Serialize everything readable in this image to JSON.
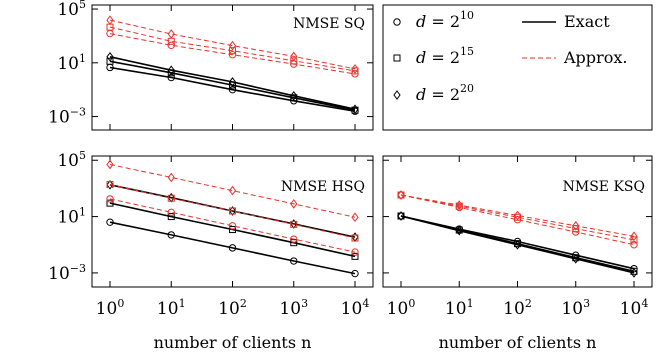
{
  "chart_data": [
    {
      "type": "line",
      "title": "NMSE SQ",
      "xscale": "log",
      "yscale": "log",
      "x": [
        1,
        10,
        100,
        1000,
        10000
      ],
      "x_ticks": [
        {
          "base": "10",
          "exp": "0"
        },
        {
          "base": "10",
          "exp": "1"
        },
        {
          "base": "10",
          "exp": "2"
        },
        {
          "base": "10",
          "exp": "3"
        },
        {
          "base": "10",
          "exp": "4"
        }
      ],
      "y_ticks": [
        {
          "base": "10",
          "exp": "5"
        },
        {
          "base": "10",
          "exp": "1"
        },
        {
          "base": "10",
          "exp": "−3"
        }
      ],
      "ylim": [
        0.0001,
        200000
      ],
      "series": [
        {
          "kind": "Exact",
          "dim": "d = 2^10",
          "marker": "circle",
          "color": "#000000",
          "values": [
            4.5,
            0.8,
            0.1,
            0.015,
            0.0025
          ]
        },
        {
          "kind": "Exact",
          "dim": "d = 2^15",
          "marker": "square",
          "color": "#000000",
          "values": [
            13,
            1.8,
            0.22,
            0.025,
            0.003
          ]
        },
        {
          "kind": "Exact",
          "dim": "d = 2^20",
          "marker": "diamond",
          "color": "#000000",
          "values": [
            28,
            2.8,
            0.38,
            0.035,
            0.0035
          ]
        },
        {
          "kind": "Approx.",
          "dim": "d = 2^10",
          "marker": "circle",
          "color": "#e8322c",
          "values": [
            1500,
            200,
            40,
            8,
            1.5
          ]
        },
        {
          "kind": "Approx.",
          "dim": "d = 2^15",
          "marker": "square",
          "color": "#e8322c",
          "values": [
            4500,
            400,
            80,
            14,
            2.5
          ]
        },
        {
          "kind": "Approx.",
          "dim": "d = 2^20",
          "marker": "diamond",
          "color": "#e8322c",
          "values": [
            15000,
            1400,
            190,
            30,
            3.5
          ]
        }
      ]
    },
    {
      "type": "line",
      "title": "NMSE HSQ",
      "xscale": "log",
      "yscale": "log",
      "x": [
        1,
        10,
        100,
        1000,
        10000
      ],
      "x_ticks": [
        {
          "base": "10",
          "exp": "0"
        },
        {
          "base": "10",
          "exp": "1"
        },
        {
          "base": "10",
          "exp": "2"
        },
        {
          "base": "10",
          "exp": "3"
        },
        {
          "base": "10",
          "exp": "4"
        }
      ],
      "y_ticks": [
        {
          "base": "10",
          "exp": "5"
        },
        {
          "base": "10",
          "exp": "1"
        },
        {
          "base": "10",
          "exp": "−3"
        }
      ],
      "xlabel": "number of clients n",
      "ylim": [
        0.0001,
        200000
      ],
      "series": [
        {
          "kind": "Exact",
          "dim": "d = 2^10",
          "marker": "circle",
          "color": "#000000",
          "values": [
            4,
            0.5,
            0.06,
            0.007,
            0.0009
          ]
        },
        {
          "kind": "Exact",
          "dim": "d = 2^15",
          "marker": "square",
          "color": "#000000",
          "values": [
            90,
            10,
            1.2,
            0.14,
            0.015
          ]
        },
        {
          "kind": "Exact",
          "dim": "d = 2^20",
          "marker": "diamond",
          "color": "#000000",
          "values": [
            1800,
            220,
            25,
            3,
            0.35
          ]
        },
        {
          "kind": "Approx.",
          "dim": "d = 2^10",
          "marker": "circle",
          "color": "#e8322c",
          "values": [
            180,
            20,
            2.2,
            0.25,
            0.03
          ]
        },
        {
          "kind": "Approx.",
          "dim": "d = 2^15",
          "marker": "square",
          "color": "#e8322c",
          "values": [
            1900,
            200,
            25,
            2.8,
            0.3
          ]
        },
        {
          "kind": "Approx.",
          "dim": "d = 2^20",
          "marker": "diamond",
          "color": "#e8322c",
          "values": [
            50000,
            6000,
            700,
            80,
            9
          ]
        }
      ]
    },
    {
      "type": "line",
      "title": "NMSE KSQ",
      "xscale": "log",
      "yscale": "log",
      "x": [
        1,
        10,
        100,
        1000,
        10000
      ],
      "x_ticks": [
        {
          "base": "10",
          "exp": "0"
        },
        {
          "base": "10",
          "exp": "1"
        },
        {
          "base": "10",
          "exp": "2"
        },
        {
          "base": "10",
          "exp": "3"
        },
        {
          "base": "10",
          "exp": "4"
        }
      ],
      "xlabel": "number of clients n",
      "ylim": [
        0.0001,
        200000
      ],
      "series": [
        {
          "kind": "Exact",
          "dim": "d = 2^10",
          "marker": "circle",
          "color": "#000000",
          "values": [
            11,
            1.3,
            0.17,
            0.018,
            0.002
          ]
        },
        {
          "kind": "Exact",
          "dim": "d = 2^15",
          "marker": "square",
          "color": "#000000",
          "values": [
            11,
            1.1,
            0.12,
            0.012,
            0.0013
          ]
        },
        {
          "kind": "Exact",
          "dim": "d = 2^20",
          "marker": "diamond",
          "color": "#000000",
          "values": [
            11,
            1.0,
            0.1,
            0.01,
            0.001
          ]
        },
        {
          "kind": "Approx.",
          "dim": "d = 2^10",
          "marker": "circle",
          "color": "#e8322c",
          "values": [
            340,
            45,
            6,
            0.8,
            0.1
          ]
        },
        {
          "kind": "Approx.",
          "dim": "d = 2^15",
          "marker": "square",
          "color": "#e8322c",
          "values": [
            340,
            55,
            9,
            1.4,
            0.22
          ]
        },
        {
          "kind": "Approx.",
          "dim": "d = 2^20",
          "marker": "diamond",
          "color": "#e8322c",
          "values": [
            340,
            65,
            12,
            2.2,
            0.4
          ]
        }
      ]
    }
  ],
  "legend": {
    "entries": [
      {
        "symbol": "circle",
        "var": "d",
        "eq": " = 2",
        "exp": "10"
      },
      {
        "symbol": "square",
        "var": "d",
        "eq": " = 2",
        "exp": "15"
      },
      {
        "symbol": "diamond",
        "var": "d",
        "eq": " = 2",
        "exp": "20"
      }
    ],
    "lines": [
      {
        "label": "Exact",
        "style": "solid",
        "color": "#000000"
      },
      {
        "label": "Approx.",
        "style": "dashed",
        "color": "#e8322c"
      }
    ]
  }
}
